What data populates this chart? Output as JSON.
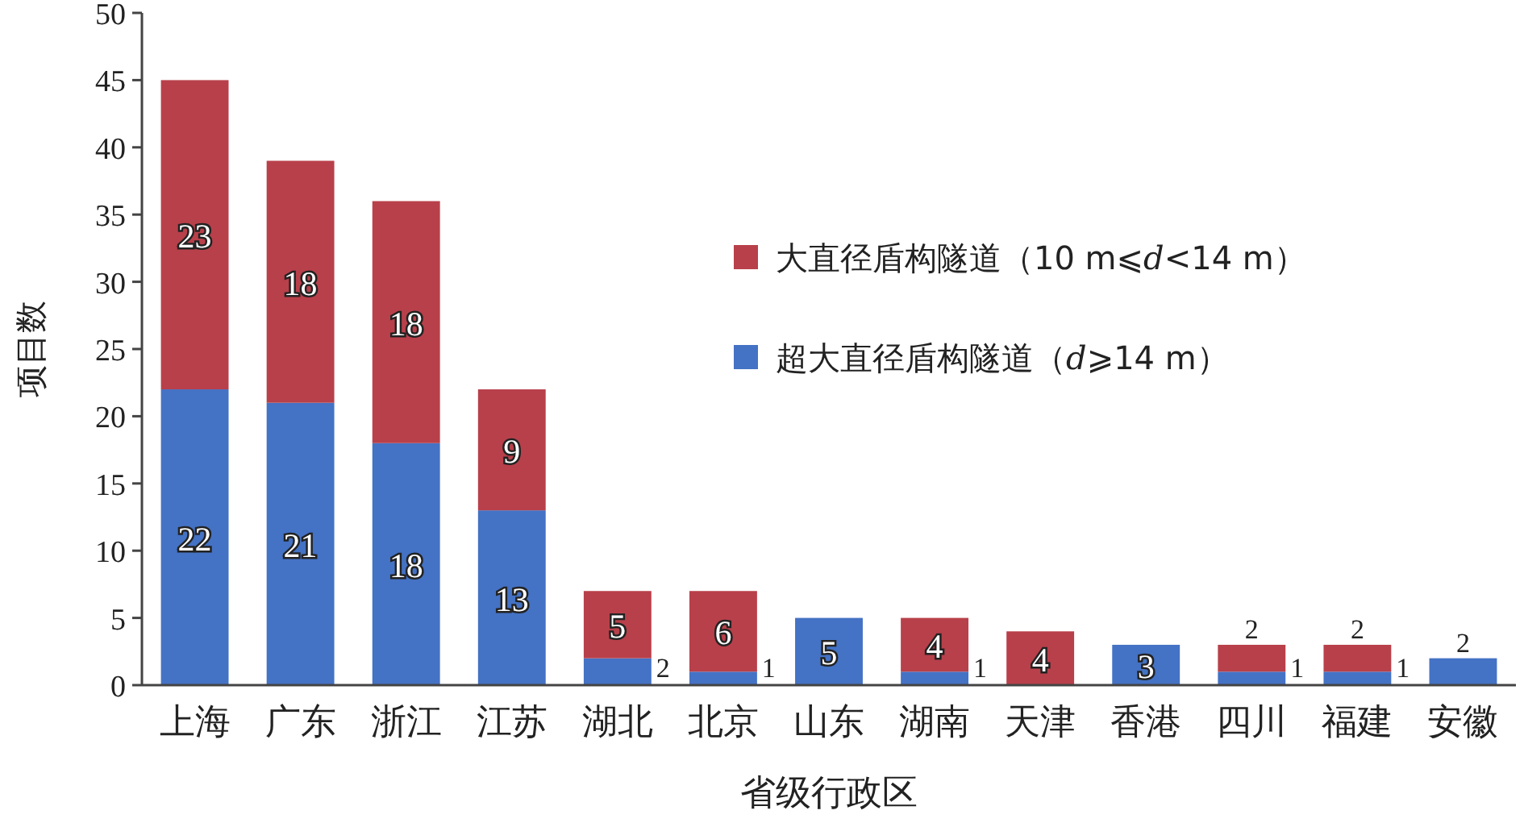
{
  "chart_data": {
    "type": "bar",
    "stacked": true,
    "xlabel": "省级行政区",
    "ylabel": "项目数",
    "categories": [
      "上海",
      "广东",
      "浙江",
      "江苏",
      "湖北",
      "北京",
      "山东",
      "湖南",
      "天津",
      "香港",
      "四川",
      "福建",
      "安徽"
    ],
    "series": [
      {
        "name": "超大直径盾构隧道（*d*⩾14 m）",
        "color": "#4472c4",
        "values": [
          22,
          21,
          18,
          13,
          2,
          1,
          5,
          1,
          null,
          3,
          1,
          1,
          2
        ]
      },
      {
        "name": "大直径盾构隧道（10 m⩽*d*<14 m）",
        "color": "#b8404a",
        "values": [
          23,
          18,
          18,
          9,
          5,
          6,
          null,
          4,
          4,
          null,
          2,
          2,
          null
        ]
      }
    ],
    "ylim": [
      0,
      50
    ],
    "yticks": [
      0,
      5,
      10,
      15,
      20,
      25,
      30,
      35,
      40,
      45,
      50
    ],
    "data_labels": true,
    "legend": "right",
    "grid": false
  }
}
